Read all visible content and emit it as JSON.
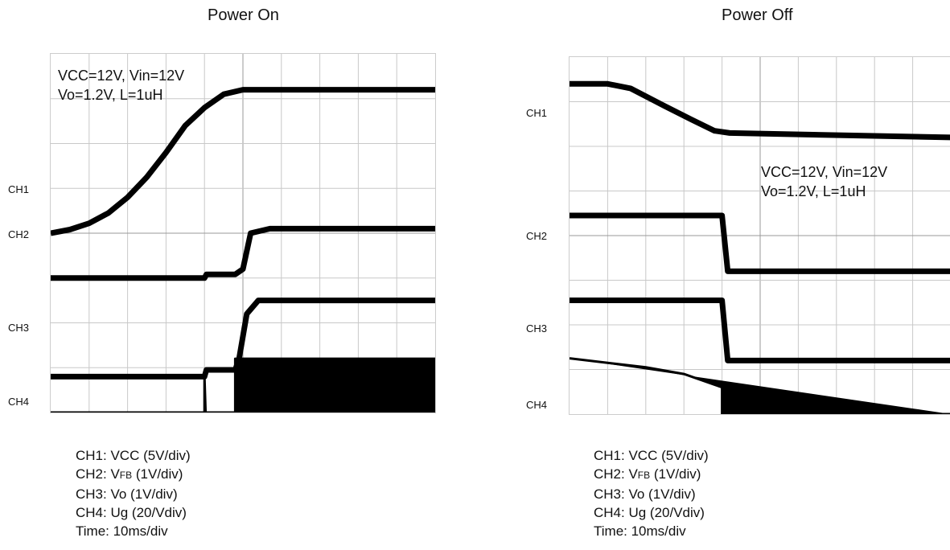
{
  "chart_data": [
    {
      "type": "line",
      "title": "Power On",
      "note": [
        "VCC=12V, Vin=12V",
        "Vo=1.2V, L=1uH"
      ],
      "grid": true,
      "xlim": [
        0,
        100
      ],
      "ylim": [
        -4,
        4
      ],
      "series": [
        {
          "name": "CH1",
          "x": [
            0,
            5,
            10,
            15,
            20,
            25,
            30,
            35,
            40,
            45,
            50,
            100
          ],
          "y": [
            0,
            0.08,
            0.22,
            0.45,
            0.8,
            1.25,
            1.8,
            2.4,
            2.8,
            3.1,
            3.2,
            3.2
          ]
        },
        {
          "name": "CH2",
          "x": [
            0,
            40,
            40.5,
            48,
            50,
            52,
            57,
            100
          ],
          "y": [
            -1,
            -1,
            -0.92,
            -0.92,
            -0.8,
            0,
            0.1,
            0.1
          ]
        },
        {
          "name": "CH3",
          "x": [
            0,
            40,
            40.5,
            48,
            49,
            51,
            54,
            100
          ],
          "y": [
            -3.2,
            -3.2,
            -3.05,
            -3.05,
            -2.8,
            -1.8,
            -1.5,
            -1.5
          ]
        },
        {
          "name": "CH4",
          "x": [
            0,
            40,
            40,
            40.3,
            48,
            48,
            100,
            100
          ],
          "y": [
            -4,
            -4,
            -3.2,
            -4,
            -4,
            -2.8,
            -2.8,
            -4
          ]
        }
      ]
    },
    {
      "type": "line",
      "title": "Power Off",
      "note": [
        "VCC=12V, Vin=12V",
        "Vo=1.2V, L=1uH"
      ],
      "grid": true,
      "xlim": [
        0,
        100
      ],
      "ylim": [
        -4,
        4
      ],
      "series": [
        {
          "name": "CH1",
          "x": [
            0,
            10,
            16,
            25,
            32,
            38,
            42,
            100
          ],
          "y": [
            3.4,
            3.4,
            3.3,
            2.9,
            2.6,
            2.35,
            2.3,
            2.2
          ]
        },
        {
          "name": "CH2",
          "x": [
            0,
            40,
            41.5,
            100
          ],
          "y": [
            0.45,
            0.45,
            -0.8,
            -0.8
          ]
        },
        {
          "name": "CH3",
          "x": [
            0,
            40,
            41.5,
            100
          ],
          "y": [
            -1.45,
            -1.45,
            -2.8,
            -2.8
          ]
        },
        {
          "name": "CH4",
          "x": [
            0,
            10,
            20,
            30,
            40,
            40,
            100
          ],
          "y": [
            -2.75,
            -2.85,
            -2.95,
            -3.1,
            -3.4,
            -4,
            -4
          ]
        }
      ]
    }
  ],
  "legend": [
    {
      "pre": "CH1: VCC (5V/div)",
      "sub": "",
      "post": ""
    },
    {
      "pre": "CH2: V",
      "sub": "FB",
      "post": " (1V/div)"
    },
    {
      "pre": "CH3: Vo (1V/div)",
      "sub": "",
      "post": ""
    },
    {
      "pre": "CH4: Ug (20/Vdiv)",
      "sub": "",
      "post": ""
    },
    {
      "pre": "Time: 10ms/div",
      "sub": "",
      "post": ""
    }
  ],
  "colors": {
    "trace": "#000000",
    "grid": "#c8c8c8",
    "axis": "#999999"
  }
}
